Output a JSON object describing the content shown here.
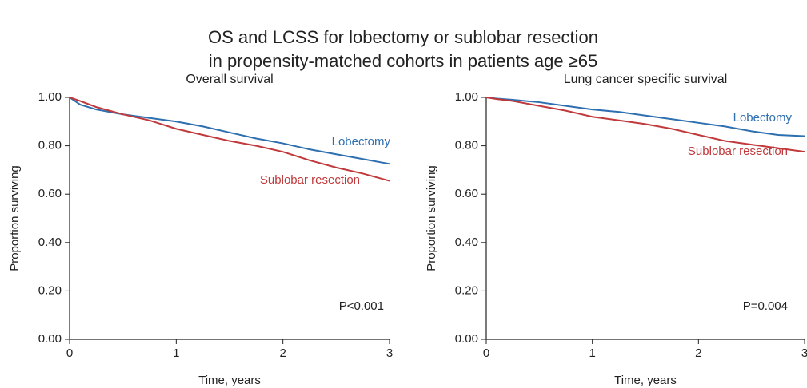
{
  "title": [
    "OS and LCSS for lobectomy or sublobar resection",
    "in propensity-matched cohorts in patients age ≥65"
  ],
  "chart_data": [
    {
      "type": "line",
      "title": "Overall survival",
      "xlabel": "Time, years",
      "ylabel": "Proportion surviving",
      "annotation": "P<0.001",
      "x": [
        0,
        0.1,
        0.25,
        0.5,
        0.75,
        1,
        1.25,
        1.5,
        1.75,
        2,
        2.25,
        2.5,
        2.75,
        3
      ],
      "series": [
        {
          "name": "Lobectomy",
          "color": "#2e6fb0",
          "values": [
            1.0,
            0.97,
            0.95,
            0.93,
            0.915,
            0.9,
            0.88,
            0.855,
            0.83,
            0.81,
            0.785,
            0.765,
            0.745,
            0.725
          ]
        },
        {
          "name": "Sublobar resection",
          "color": "#c0393b",
          "values": [
            1.0,
            0.985,
            0.96,
            0.93,
            0.905,
            0.87,
            0.845,
            0.82,
            0.8,
            0.775,
            0.74,
            0.71,
            0.685,
            0.655
          ]
        }
      ],
      "xlim": [
        0,
        3
      ],
      "xticks": [
        0,
        1,
        2,
        3
      ],
      "ylim": [
        0,
        1
      ],
      "yticks": [
        {
          "value": 0,
          "label": "0.00"
        },
        {
          "value": 0.2,
          "label": "0.20"
        },
        {
          "value": 0.4,
          "label": "0.40"
        },
        {
          "value": 0.6,
          "label": "0.60"
        },
        {
          "value": 0.8,
          "label": "0.80"
        },
        {
          "value": 1,
          "label": "1.00"
        }
      ]
    },
    {
      "type": "line",
      "title": "Lung cancer specific survival",
      "xlabel": "Time, years",
      "ylabel": "Proportion surviving",
      "annotation": "P=0.004",
      "x": [
        0,
        0.1,
        0.25,
        0.5,
        0.75,
        1,
        1.25,
        1.5,
        1.75,
        2,
        2.25,
        2.5,
        2.75,
        3
      ],
      "series": [
        {
          "name": "Lobectomy",
          "color": "#2e6fb0",
          "values": [
            1.0,
            0.995,
            0.99,
            0.98,
            0.965,
            0.95,
            0.94,
            0.925,
            0.91,
            0.895,
            0.88,
            0.86,
            0.845,
            0.84
          ]
        },
        {
          "name": "Sublobar resection",
          "color": "#c0393b",
          "values": [
            1.0,
            0.993,
            0.985,
            0.965,
            0.945,
            0.92,
            0.905,
            0.89,
            0.87,
            0.845,
            0.82,
            0.805,
            0.79,
            0.775
          ]
        }
      ],
      "xlim": [
        0,
        3
      ],
      "xticks": [
        0,
        1,
        2,
        3
      ],
      "ylim": [
        0,
        1
      ],
      "yticks": [
        {
          "value": 0,
          "label": "0.00"
        },
        {
          "value": 0.2,
          "label": "0.20"
        },
        {
          "value": 0.4,
          "label": "0.40"
        },
        {
          "value": 0.6,
          "label": "0.60"
        },
        {
          "value": 0.8,
          "label": "0.80"
        },
        {
          "value": 1,
          "label": "1.00"
        }
      ]
    }
  ]
}
